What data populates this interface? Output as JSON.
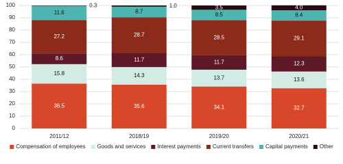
{
  "chart_data": {
    "type": "stacked-bar",
    "categories": [
      "2011/12",
      "2018/19",
      "2019/20",
      "2020/21"
    ],
    "series": [
      {
        "name": "Compensation of employees",
        "color": "#d9472b",
        "values": [
          36.5,
          35.6,
          34.1,
          32.7
        ]
      },
      {
        "name": "Goods and services",
        "color": "#d3ebe5",
        "values": [
          15.8,
          14.3,
          13.7,
          13.6
        ]
      },
      {
        "name": "Interest payments",
        "color": "#5e1828",
        "values": [
          8.6,
          11.7,
          11.7,
          12.3
        ]
      },
      {
        "name": "Current transfers",
        "color": "#8c2b1b",
        "values": [
          27.2,
          28.7,
          28.5,
          29.1
        ]
      },
      {
        "name": "Capital payments",
        "color": "#4cb5b0",
        "values": [
          11.6,
          8.7,
          8.5,
          8.4
        ]
      },
      {
        "name": "Other",
        "color": "#2a0a12",
        "values": [
          0.3,
          1.0,
          3.5,
          4.0
        ],
        "value_labels": [
          "0.3",
          "1.0",
          "3.5",
          "4.0"
        ]
      }
    ],
    "ylim": [
      0,
      100
    ],
    "yticks": [
      0,
      10,
      20,
      30,
      40,
      50,
      60,
      70,
      80,
      90,
      100
    ],
    "grid": true,
    "legend": "bottom"
  }
}
